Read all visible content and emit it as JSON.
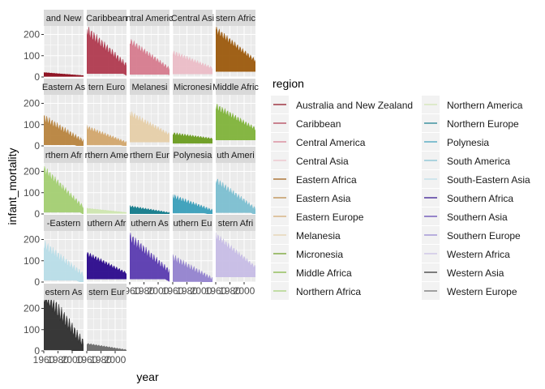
{
  "chart_data": {
    "type": "area",
    "facet_variable": "region",
    "xlabel": "year",
    "ylabel": "infant_mortality",
    "xlim": [
      1960,
      2016
    ],
    "ylim": [
      0,
      240
    ],
    "x_ticks": [
      1960,
      1980,
      2000
    ],
    "x_tick_labels": [
      "1960",
      "1980",
      "2000"
    ],
    "y_ticks": [
      0,
      100,
      200
    ],
    "y_tick_labels": [
      "0",
      "100",
      "200"
    ],
    "grid": true,
    "legend": {
      "title": "region",
      "placement": "right",
      "columns": 2
    },
    "panel_strip_labels": [
      "and New",
      "Caribbean",
      "ntral Americ",
      "Central Asi",
      "stern Afric",
      "Eastern As",
      "tern Euro",
      "Melanesi",
      "Micronesi",
      "Middle Afric",
      "rthern Afr",
      "rthern Ame",
      "rthern Eur",
      "Polynesia",
      "uth Ameri",
      "-Eastern",
      "uthern Afr",
      "uthern As",
      "uthern Eu",
      "stern Afri",
      "estern As",
      "stern Eur"
    ],
    "series": [
      {
        "name": "Australia and New Zealand",
        "color": "#8b0a1a",
        "start": 20,
        "end": 6,
        "spread": 3,
        "lines": 2
      },
      {
        "name": "Caribbean",
        "color": "#b03a4f",
        "start": 190,
        "end": 40,
        "spread": 110,
        "lines": 10
      },
      {
        "name": "Central America",
        "color": "#d67b8e",
        "start": 150,
        "end": 30,
        "spread": 70,
        "lines": 7
      },
      {
        "name": "Central Asia",
        "color": "#ebbdc7",
        "start": 100,
        "end": 35,
        "spread": 55,
        "lines": 6
      },
      {
        "name": "Eastern Africa",
        "color": "#9c5a0d",
        "start": 200,
        "end": 65,
        "spread": 80,
        "lines": 9
      },
      {
        "name": "Eastern Asia",
        "color": "#b8843e",
        "start": 110,
        "end": 12,
        "spread": 80,
        "lines": 5
      },
      {
        "name": "Eastern Europe",
        "color": "#d2a76d",
        "start": 75,
        "end": 10,
        "spread": 45,
        "lines": 9
      },
      {
        "name": "Melanesia",
        "color": "#e6cfa9",
        "start": 135,
        "end": 45,
        "spread": 65,
        "lines": 5
      },
      {
        "name": "Micronesia",
        "color": "#6a9c1f",
        "start": 50,
        "end": 30,
        "spread": 30,
        "lines": 3
      },
      {
        "name": "Middle Africa",
        "color": "#7fb33a",
        "start": 165,
        "end": 70,
        "spread": 75,
        "lines": 8
      },
      {
        "name": "Northern Africa",
        "color": "#a3cf72",
        "start": 190,
        "end": 20,
        "spread": 80,
        "lines": 6
      },
      {
        "name": "Northern America",
        "color": "#cfe6b0",
        "start": 25,
        "end": 6,
        "spread": 5,
        "lines": 2
      },
      {
        "name": "Northern Europe",
        "color": "#127a8a",
        "start": 30,
        "end": 3,
        "spread": 22,
        "lines": 9
      },
      {
        "name": "Polynesia",
        "color": "#3a9fba",
        "start": 70,
        "end": 10,
        "spread": 50,
        "lines": 4
      },
      {
        "name": "South America",
        "color": "#7cbfd1",
        "start": 140,
        "end": 15,
        "spread": 70,
        "lines": 11
      },
      {
        "name": "South-Eastern Asia",
        "color": "#b8dde8",
        "start": 150,
        "end": 20,
        "spread": 100,
        "lines": 10
      },
      {
        "name": "Southern Africa",
        "color": "#2b0a8c",
        "start": 120,
        "end": 35,
        "spread": 50,
        "lines": 5
      },
      {
        "name": "Southern Asia",
        "color": "#5a3bb0",
        "start": 180,
        "end": 35,
        "spread": 110,
        "lines": 9
      },
      {
        "name": "Southern Europe",
        "color": "#9383cf",
        "start": 95,
        "end": 5,
        "spread": 75,
        "lines": 10
      },
      {
        "name": "Western Africa",
        "color": "#c7bde6",
        "start": 200,
        "end": 60,
        "spread": 70,
        "lines": 15
      },
      {
        "name": "Western Asia",
        "color": "#2e2e2e",
        "start": 230,
        "end": 10,
        "spread": 190,
        "lines": 16
      },
      {
        "name": "Western Europe",
        "color": "#6a6a6a",
        "start": 30,
        "end": 3,
        "spread": 15,
        "lines": 8
      }
    ]
  }
}
